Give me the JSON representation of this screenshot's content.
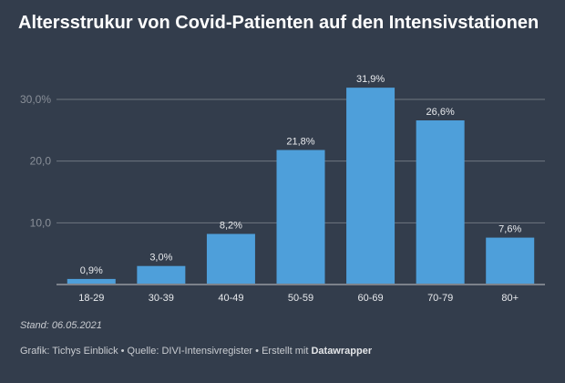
{
  "chart_data": {
    "type": "bar",
    "title": "Altersstrukur von Covid-Patienten auf den Intensivstationen",
    "categories": [
      "18-29",
      "30-39",
      "40-49",
      "50-59",
      "60-69",
      "70-79",
      "80+"
    ],
    "values": [
      0.9,
      3.0,
      8.2,
      21.8,
      31.9,
      26.6,
      7.6
    ],
    "value_labels": [
      "0,9%",
      "3,0%",
      "8,2%",
      "21,8%",
      "31,9%",
      "26,6%",
      "7,6%"
    ],
    "yticks": [
      10,
      20,
      30
    ],
    "ytick_labels": [
      "10,0",
      "20,0",
      "30,0%"
    ],
    "ylim": [
      0,
      30
    ],
    "xlabel": "",
    "ylabel": "",
    "grid": true,
    "bar_color": "#4e9fda"
  },
  "notes": {
    "stand": "Stand: 06.05.2021"
  },
  "footer": {
    "text": "Grafik: Tichys Einblick • Quelle: DIVI-Intensivregister • Erstellt mit ",
    "brand": "Datawrapper"
  }
}
